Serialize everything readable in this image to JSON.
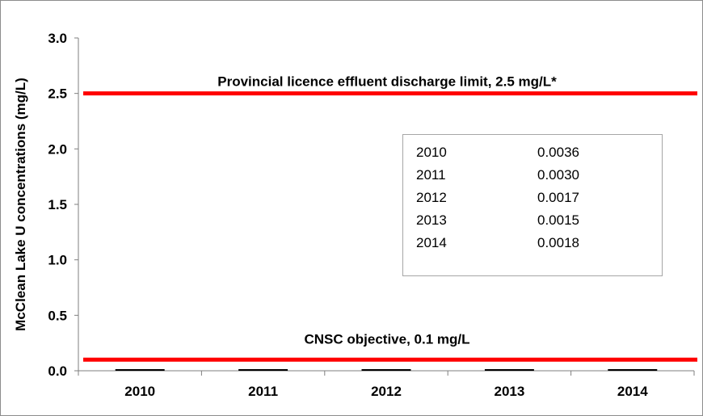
{
  "chart_data": {
    "type": "bar",
    "ylabel": "McClean Lake U concentrations (mg/L)",
    "xlabel": "",
    "ylim": [
      0,
      3.0
    ],
    "yticks": [
      "0.0",
      "0.5",
      "1.0",
      "1.5",
      "2.0",
      "2.5",
      "3.0"
    ],
    "categories": [
      "2010",
      "2011",
      "2012",
      "2013",
      "2014"
    ],
    "values": [
      0.0036,
      0.003,
      0.0017,
      0.0015,
      0.0018
    ],
    "reference_lines": [
      {
        "label": "Provincial licence effluent discharge limit, 2.5 mg/L*",
        "value": 2.5,
        "color": "#ff0000"
      },
      {
        "label": "CNSC objective, 0.1 mg/L",
        "value": 0.1,
        "color": "#ff0000"
      }
    ],
    "table": [
      {
        "year": "2010",
        "value": "0.0036"
      },
      {
        "year": "2011",
        "value": "0.0030"
      },
      {
        "year": "2012",
        "value": "0.0017"
      },
      {
        "year": "2013",
        "value": "0.0015"
      },
      {
        "year": "2014",
        "value": "0.0018"
      }
    ],
    "grid": false,
    "bar_color": "#000000"
  }
}
